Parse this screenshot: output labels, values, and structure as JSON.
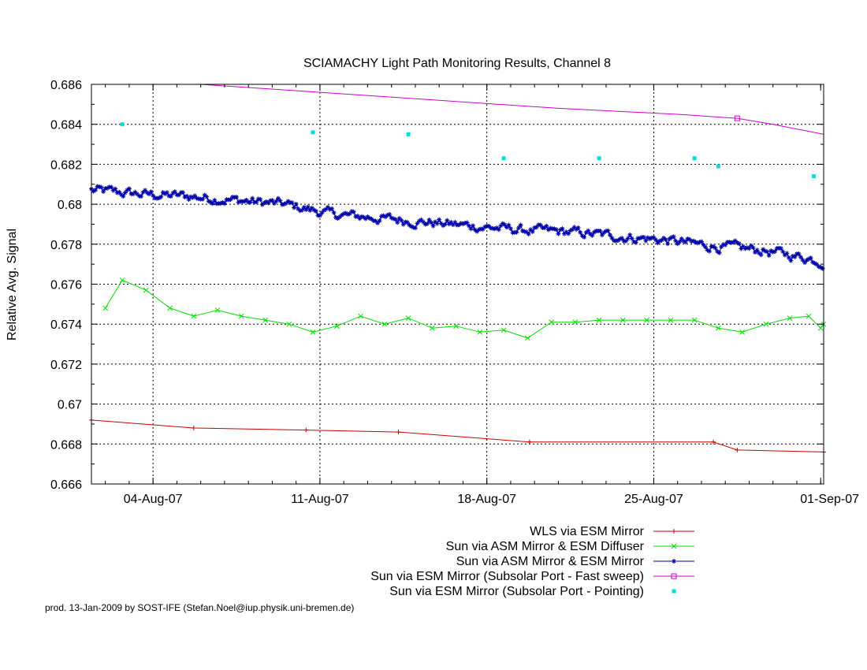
{
  "chart_data": {
    "type": "line",
    "title": "SCIAMACHY Light Path Monitoring Results, Channel 8",
    "xlabel": "",
    "ylabel": "Relative Avg. Signal",
    "x_axis": {
      "type": "date",
      "range": [
        "2007-08-01T10:00",
        "2007-09-01T03:00"
      ],
      "ticks": [
        {
          "value": "2007-08-04",
          "label": "04-Aug-07"
        },
        {
          "value": "2007-08-11",
          "label": "11-Aug-07"
        },
        {
          "value": "2007-08-18",
          "label": "18-Aug-07"
        },
        {
          "value": "2007-08-25",
          "label": "25-Aug-07"
        },
        {
          "value": "2007-09-01",
          "label": "01-Sep-07"
        }
      ]
    },
    "y_axis": {
      "range": [
        0.666,
        0.686
      ],
      "ticks": [
        {
          "value": 0.666,
          "label": "0.666"
        },
        {
          "value": 0.668,
          "label": "0.668"
        },
        {
          "value": 0.67,
          "label": "0.67"
        },
        {
          "value": 0.672,
          "label": "0.672"
        },
        {
          "value": 0.674,
          "label": "0.674"
        },
        {
          "value": 0.676,
          "label": "0.676"
        },
        {
          "value": 0.678,
          "label": "0.678"
        },
        {
          "value": 0.68,
          "label": "0.68"
        },
        {
          "value": 0.682,
          "label": "0.682"
        },
        {
          "value": 0.684,
          "label": "0.684"
        },
        {
          "value": 0.686,
          "label": "0.686"
        }
      ]
    },
    "grid": true,
    "legend_position": "bottom-right",
    "series": [
      {
        "name": "WLS via ESM Mirror",
        "color": "#cc0000",
        "style": "line+plus",
        "points": [
          {
            "x": "2007-08-01T10:00",
            "y": 0.6692
          },
          {
            "x": "2007-08-05T17:00",
            "y": 0.6688
          },
          {
            "x": "2007-08-10T10:00",
            "y": 0.6687
          },
          {
            "x": "2007-08-14T07:00",
            "y": 0.6686
          },
          {
            "x": "2007-08-19T19:00",
            "y": 0.6681
          },
          {
            "x": "2007-08-27T12:00",
            "y": 0.6681
          },
          {
            "x": "2007-08-28T12:00",
            "y": 0.6677
          },
          {
            "x": "2007-09-01T03:00",
            "y": 0.6676
          }
        ]
      },
      {
        "name": "Sun via ASM Mirror & ESM Diffuser",
        "color": "#00dd00",
        "style": "line+cross",
        "points": [
          {
            "x": "2007-08-02T00:00",
            "y": 0.6748
          },
          {
            "x": "2007-08-02T17:00",
            "y": 0.6762
          },
          {
            "x": "2007-08-03T17:00",
            "y": 0.6757
          },
          {
            "x": "2007-08-04T17:00",
            "y": 0.6748
          },
          {
            "x": "2007-08-05T17:00",
            "y": 0.6744
          },
          {
            "x": "2007-08-06T17:00",
            "y": 0.6747
          },
          {
            "x": "2007-08-07T17:00",
            "y": 0.6744
          },
          {
            "x": "2007-08-08T17:00",
            "y": 0.6742
          },
          {
            "x": "2007-08-09T17:00",
            "y": 0.674
          },
          {
            "x": "2007-08-10T17:00",
            "y": 0.6736
          },
          {
            "x": "2007-08-11T17:00",
            "y": 0.6739
          },
          {
            "x": "2007-08-12T17:00",
            "y": 0.6744
          },
          {
            "x": "2007-08-13T17:00",
            "y": 0.674
          },
          {
            "x": "2007-08-14T17:00",
            "y": 0.6743
          },
          {
            "x": "2007-08-15T17:00",
            "y": 0.6738
          },
          {
            "x": "2007-08-16T17:00",
            "y": 0.6739
          },
          {
            "x": "2007-08-17T17:00",
            "y": 0.6736
          },
          {
            "x": "2007-08-18T17:00",
            "y": 0.6737
          },
          {
            "x": "2007-08-19T17:00",
            "y": 0.6733
          },
          {
            "x": "2007-08-20T17:00",
            "y": 0.6741
          },
          {
            "x": "2007-08-21T17:00",
            "y": 0.6741
          },
          {
            "x": "2007-08-22T17:00",
            "y": 0.6742
          },
          {
            "x": "2007-08-23T17:00",
            "y": 0.6742
          },
          {
            "x": "2007-08-24T17:00",
            "y": 0.6742
          },
          {
            "x": "2007-08-25T17:00",
            "y": 0.6742
          },
          {
            "x": "2007-08-26T17:00",
            "y": 0.6742
          },
          {
            "x": "2007-08-27T17:00",
            "y": 0.6738
          },
          {
            "x": "2007-08-28T17:00",
            "y": 0.6736
          },
          {
            "x": "2007-08-29T17:00",
            "y": 0.674
          },
          {
            "x": "2007-08-30T17:00",
            "y": 0.6743
          },
          {
            "x": "2007-08-31T12:00",
            "y": 0.6744
          },
          {
            "x": "2007-09-01T00:00",
            "y": 0.6738
          },
          {
            "x": "2007-09-01T03:00",
            "y": 0.674
          }
        ]
      },
      {
        "name": "Sun via ASM Mirror & ESM Mirror",
        "color": "#0000aa",
        "style": "dense-line+star",
        "trend_points": [
          {
            "x": "2007-08-01T10:00",
            "y": 0.6807
          },
          {
            "x": "2007-08-03T12:00",
            "y": 0.6805
          },
          {
            "x": "2007-08-05T12:00",
            "y": 0.6804
          },
          {
            "x": "2007-08-07T12:00",
            "y": 0.6802
          },
          {
            "x": "2007-08-09T12:00",
            "y": 0.68
          },
          {
            "x": "2007-08-11T12:00",
            "y": 0.6795
          },
          {
            "x": "2007-08-13T12:00",
            "y": 0.6793
          },
          {
            "x": "2007-08-15T12:00",
            "y": 0.6791
          },
          {
            "x": "2007-08-17T12:00",
            "y": 0.6789
          },
          {
            "x": "2007-08-19T12:00",
            "y": 0.6787
          },
          {
            "x": "2007-08-21T12:00",
            "y": 0.6786
          },
          {
            "x": "2007-08-23T12:00",
            "y": 0.6784
          },
          {
            "x": "2007-08-25T12:00",
            "y": 0.6782
          },
          {
            "x": "2007-08-27T12:00",
            "y": 0.6779
          },
          {
            "x": "2007-08-29T12:00",
            "y": 0.6777
          },
          {
            "x": "2007-08-31T12:00",
            "y": 0.6773
          },
          {
            "x": "2007-09-01T03:00",
            "y": 0.6771
          }
        ],
        "noise_amplitude": 0.0002
      },
      {
        "name": "Sun via ESM Mirror (Subsolar Port - Fast sweep)",
        "color": "#cc00cc",
        "style": "line+square",
        "points": [
          {
            "x": "2007-08-06T00:00",
            "y": 0.686
          },
          {
            "x": "2007-08-11T00:00",
            "y": 0.6856
          },
          {
            "x": "2007-08-16T00:00",
            "y": 0.6852
          },
          {
            "x": "2007-08-21T00:00",
            "y": 0.6848
          },
          {
            "x": "2007-08-26T00:00",
            "y": 0.6845
          },
          {
            "x": "2007-08-28T12:00",
            "y": 0.6843
          },
          {
            "x": "2007-08-30T00:00",
            "y": 0.684
          },
          {
            "x": "2007-09-01T03:00",
            "y": 0.6835
          }
        ],
        "marker_points": [
          {
            "x": "2007-08-28T12:00",
            "y": 0.6843
          }
        ]
      },
      {
        "name": "Sun via ESM Mirror (Subsolar Port - Pointing)",
        "color": "#00dddd",
        "style": "points",
        "points": [
          {
            "x": "2007-08-02T17:00",
            "y": 0.684
          },
          {
            "x": "2007-08-10T17:00",
            "y": 0.6836
          },
          {
            "x": "2007-08-14T17:00",
            "y": 0.6835
          },
          {
            "x": "2007-08-18T17:00",
            "y": 0.6823
          },
          {
            "x": "2007-08-22T17:00",
            "y": 0.6823
          },
          {
            "x": "2007-08-26T17:00",
            "y": 0.6823
          },
          {
            "x": "2007-08-27T17:00",
            "y": 0.6819
          },
          {
            "x": "2007-08-31T17:00",
            "y": 0.6814
          }
        ]
      }
    ]
  },
  "footer": "prod. 13-Jan-2009 by SOST-IFE (Stefan.Noel@iup.physik.uni-bremen.de)"
}
